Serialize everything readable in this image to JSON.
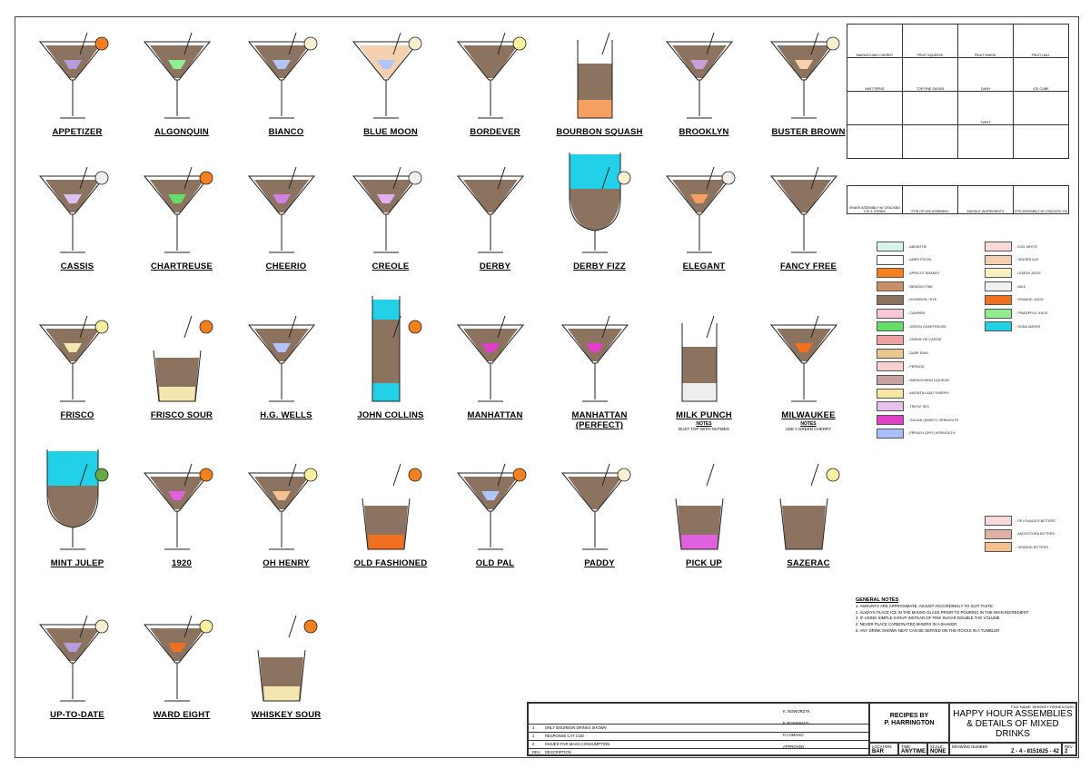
{
  "drinks": [
    {
      "name": "APPETIZER",
      "glass": "martini",
      "fill": "#8b7360",
      "accent": "#b39ddb",
      "garnish": "orange-wheel",
      "note": ""
    },
    {
      "name": "ALGONQUIN",
      "glass": "martini",
      "fill": "#8b7360",
      "accent": "#90ee90",
      "garnish": "none",
      "note": ""
    },
    {
      "name": "BIANCO",
      "glass": "martini",
      "fill": "#8b7360",
      "accent": "#b0c4ff",
      "garnish": "fruit-hull",
      "note": ""
    },
    {
      "name": "BLUE MOON",
      "glass": "martini",
      "fill": "#f5d0b0",
      "accent": "#b0c4ff",
      "garnish": "fruit-hull",
      "note": ""
    },
    {
      "name": "BORDEVER",
      "glass": "martini",
      "fill": "#8b7360",
      "accent": "#8b7360",
      "garnish": "lemon",
      "note": ""
    },
    {
      "name": "BOURBON SQUASH",
      "glass": "highball",
      "fill": "#8b7360",
      "accent": "#f5a060",
      "garnish": "none",
      "note": ""
    },
    {
      "name": "BROOKLYN",
      "glass": "martini",
      "fill": "#8b7360",
      "accent": "#c8a0d8",
      "garnish": "none",
      "note": ""
    },
    {
      "name": "BUSTER BROWN",
      "glass": "martini",
      "fill": "#8b7360",
      "accent": "#f5d0b0",
      "garnish": "fruit-hull",
      "note": ""
    },
    {
      "name": "CASSIS",
      "glass": "martini",
      "fill": "#8b7360",
      "accent": "#e0c0f0",
      "garnish": "fruit-wheel",
      "note": ""
    },
    {
      "name": "CHARTREUSE",
      "glass": "martini",
      "fill": "#8b7360",
      "accent": "#66dd66",
      "garnish": "orange",
      "note": ""
    },
    {
      "name": "CHEERIO",
      "glass": "martini",
      "fill": "#8b7360",
      "accent": "#d080e0",
      "garnish": "none",
      "note": ""
    },
    {
      "name": "CREOLE",
      "glass": "martini",
      "fill": "#8b7360",
      "accent": "#e0b0f0",
      "garnish": "fruit-wheel",
      "note": ""
    },
    {
      "name": "DERBY",
      "glass": "martini",
      "fill": "#8b7360",
      "accent": "#8b7360",
      "garnish": "none",
      "note": ""
    },
    {
      "name": "DERBY FIZZ",
      "glass": "goblet",
      "fill": "#8b7360",
      "accent": "#22d0e8",
      "garnish": "fruit-hull",
      "note": ""
    },
    {
      "name": "ELEGANT",
      "glass": "martini",
      "fill": "#8b7360",
      "accent": "#f5a060",
      "garnish": "fruit-wheel",
      "note": ""
    },
    {
      "name": "FANCY FREE",
      "glass": "martini",
      "fill": "#8b7360",
      "accent": "#8b7360",
      "garnish": "none",
      "note": ""
    },
    {
      "name": "FRISCO",
      "glass": "martini",
      "fill": "#8b7360",
      "accent": "#f5e6b0",
      "garnish": "lemon",
      "note": ""
    },
    {
      "name": "FRISCO SOUR",
      "glass": "rocks",
      "fill": "#8b7360",
      "accent": "#f5e6b0",
      "garnish": "orange",
      "note": ""
    },
    {
      "name": "H.G. WELLS",
      "glass": "martini",
      "fill": "#8b7360",
      "accent": "#b0c4ff",
      "garnish": "none",
      "note": ""
    },
    {
      "name": "JOHN COLLINS",
      "glass": "collins",
      "fill": "#8b7360",
      "accent": "#22d0e8",
      "garnish": "orange-wheel",
      "note": ""
    },
    {
      "name": "MANHATTAN",
      "glass": "martini",
      "fill": "#8b7360",
      "accent": "#e040c8",
      "garnish": "none",
      "note": ""
    },
    {
      "name": "MANHATTAN (PERFECT)",
      "glass": "martini",
      "fill": "#8b7360",
      "accent": "#e040c8",
      "garnish": "none",
      "note": ""
    },
    {
      "name": "MILK PUNCH",
      "glass": "highball",
      "fill": "#8b7360",
      "accent": "#eeeeee",
      "garnish": "none",
      "note": "DUST TOP WITH NUTMEG"
    },
    {
      "name": "MILWAUKEE",
      "glass": "martini",
      "fill": "#8b7360",
      "accent": "#f07020",
      "garnish": "none",
      "note": "USE A GREEN CHERRY"
    },
    {
      "name": "MINT JULEP",
      "glass": "goblet",
      "fill": "#8b7360",
      "accent": "#22d0e8",
      "garnish": "mint",
      "note": ""
    },
    {
      "name": "1920",
      "glass": "martini",
      "fill": "#8b7360",
      "accent": "#e060e0",
      "garnish": "orange",
      "note": ""
    },
    {
      "name": "OH HENRY",
      "glass": "martini",
      "fill": "#8b7360",
      "accent": "#f5c090",
      "garnish": "lemon",
      "note": ""
    },
    {
      "name": "OLD FASHIONED",
      "glass": "rocks",
      "fill": "#8b7360",
      "accent": "#f07020",
      "garnish": "orange-wheel",
      "note": ""
    },
    {
      "name": "OLD PAL",
      "glass": "martini",
      "fill": "#8b7360",
      "accent": "#b0c4ff",
      "garnish": "orange-wheel",
      "note": ""
    },
    {
      "name": "PADDY",
      "glass": "martini",
      "fill": "#8b7360",
      "accent": "#8b7360",
      "garnish": "fruit-hull",
      "note": ""
    },
    {
      "name": "PICK UP",
      "glass": "rocks",
      "fill": "#8b7360",
      "accent": "#e060e0",
      "garnish": "none",
      "note": ""
    },
    {
      "name": "SAZERAC",
      "glass": "rocks",
      "fill": "#8b7360",
      "accent": "#8b7360",
      "garnish": "lemon",
      "note": ""
    },
    {
      "name": "UP-TO-DATE",
      "glass": "martini",
      "fill": "#8b7360",
      "accent": "#b39ddb",
      "garnish": "fruit-hull",
      "note": ""
    },
    {
      "name": "WARD EIGHT",
      "glass": "martini",
      "fill": "#8b7360",
      "accent": "#f07020",
      "garnish": "lemon",
      "note": ""
    },
    {
      "name": "WHISKEY SOUR",
      "glass": "rocks",
      "fill": "#8b7360",
      "accent": "#f5e6b0",
      "garnish": "orange",
      "note": ""
    }
  ],
  "notes_label": "NOTES",
  "garnish_ref": [
    "MARASCHINO CHERRY",
    "FRUIT SQUEEZE",
    "FRUIT WHEEL",
    "FRUIT HULL",
    "MINT SPRIG",
    "TOP FINE SUGAR",
    "DASH",
    "ICE CUBE",
    "",
    "",
    "TWIST",
    "",
    "",
    "",
    "",
    ""
  ],
  "method_ref": [
    "SHAKE ASSEMBLY W/ CRACKED ICE & STRAIN",
    "STIR OR MIX ASSEMBLY",
    "MUDDLE INGREDIENTS",
    "STIR ASSEMBLY W/ CRACKED ICE"
  ],
  "legend_left": [
    {
      "label": "- ABSINTHE",
      "color": "#d8f5e8"
    },
    {
      "label": "- AMER PICON",
      "color": "#ffffff"
    },
    {
      "label": "- APRICOT BRANDY",
      "color": "#f5801e"
    },
    {
      "label": "- BENEDICTINE",
      "color": "#c89068"
    },
    {
      "label": "- BOURBON / RYE",
      "color": "#8b7360"
    },
    {
      "label": "- CAMPARI",
      "color": "#f8c8d8"
    },
    {
      "label": "- GREEN CHARTREUSE",
      "color": "#66dd66"
    },
    {
      "label": "- CREME DE CASSIS",
      "color": "#f0a0a0"
    },
    {
      "label": "- DARK RUM",
      "color": "#e8c890"
    },
    {
      "label": "- PERNOD",
      "color": "#f8d0d0"
    },
    {
      "label": "- MARASCHINO LIQUEUR",
      "color": "#c8a0a0"
    },
    {
      "label": "- AMONTILLADO SHERRY",
      "color": "#f5e6a0"
    },
    {
      "label": "- TRIPLE SEC",
      "color": "#e8c0f0"
    },
    {
      "label": "- ITALIAN (SWEET) VERMOUTH",
      "color": "#e040c8"
    },
    {
      "label": "- FRENCH (DRY) VERMOUTH",
      "color": "#a8c0ff"
    }
  ],
  "legend_right": [
    {
      "label": "- EGG WHITE",
      "color": "#f8d8d8"
    },
    {
      "label": "- GINGER ALE",
      "color": "#f5d0b0"
    },
    {
      "label": "- LEMON JUICE",
      "color": "#f8f0c0"
    },
    {
      "label": "- MILK",
      "color": "#f0f0f0"
    },
    {
      "label": "- ORANGE JUICE",
      "color": "#f07020"
    },
    {
      "label": "- PINEAPPLE JUICE",
      "color": "#90ee90"
    },
    {
      "label": "- SODA WATER",
      "color": "#22d0e8"
    }
  ],
  "bitters": [
    {
      "label": "- PEYCHAUD'S BITTERS",
      "color": "#f8d8d8"
    },
    {
      "label": "- ANGOSTURA BITTERS",
      "color": "#e0b0a8"
    },
    {
      "label": "- ORANGE BITTERS",
      "color": "#f5c090"
    }
  ],
  "general_notes": {
    "title": "GENERAL NOTES",
    "items": [
      "1.   AMOUNTS ARE APPROXIMATE. ADJUST ACCORDINGLY TO SUIT TASTE",
      "2.   ALWAYS PLACE ICE IN THE MIXING GLASS PRIOR TO POURING IN THE MAIN INGREDIENT",
      "3.   IF USING SIMPLE SYRUP INSTEAD OF FINE SUGAR DOUBLE THE VOLUME",
      "4.   NEVER PLACE CARBONATED MIXERS IN A SHAKER",
      "5.   ANY DRINK SHOWN NEAT CAN BE SERVED ON THE ROCKS IN A TUMBLER"
    ]
  },
  "title_block": {
    "file_name": "FILE NAME: WHISKEY DRINKS.DWG",
    "company_line1": "RECIPES BY",
    "company_line2": "P. HARRINGTON",
    "title": "HAPPY HOUR ASSEMBLIES & DETAILS OF MIXED DRINKS",
    "location_label": "LOCATION:",
    "location": "BAR",
    "time_label": "TIME:",
    "time": "ANYTIME",
    "scale_label": "SCALE:",
    "scale": "NONE",
    "drawing_number_label": "DRAWING NUMBER",
    "drawing_number": "Z - 4 - 8151625 - 42",
    "rev_label": "REV",
    "rev": "2",
    "revisions": [
      {
        "rev": "2",
        "desc": "ONLY BOURBON DRINKS SHOWN"
      },
      {
        "rev": "1",
        "desc": "RESPONSE CAT COD"
      },
      {
        "rev": "0",
        "desc": "ISSUED FOR MASS CONSUMPTION"
      },
      {
        "rev": "REV",
        "desc": "DESCRIPTION"
      }
    ],
    "signoffs": [
      "K. NOWORZYK",
      "F. ROSSWALD",
      "P.J.OMAHO",
      "APPROVED"
    ]
  }
}
